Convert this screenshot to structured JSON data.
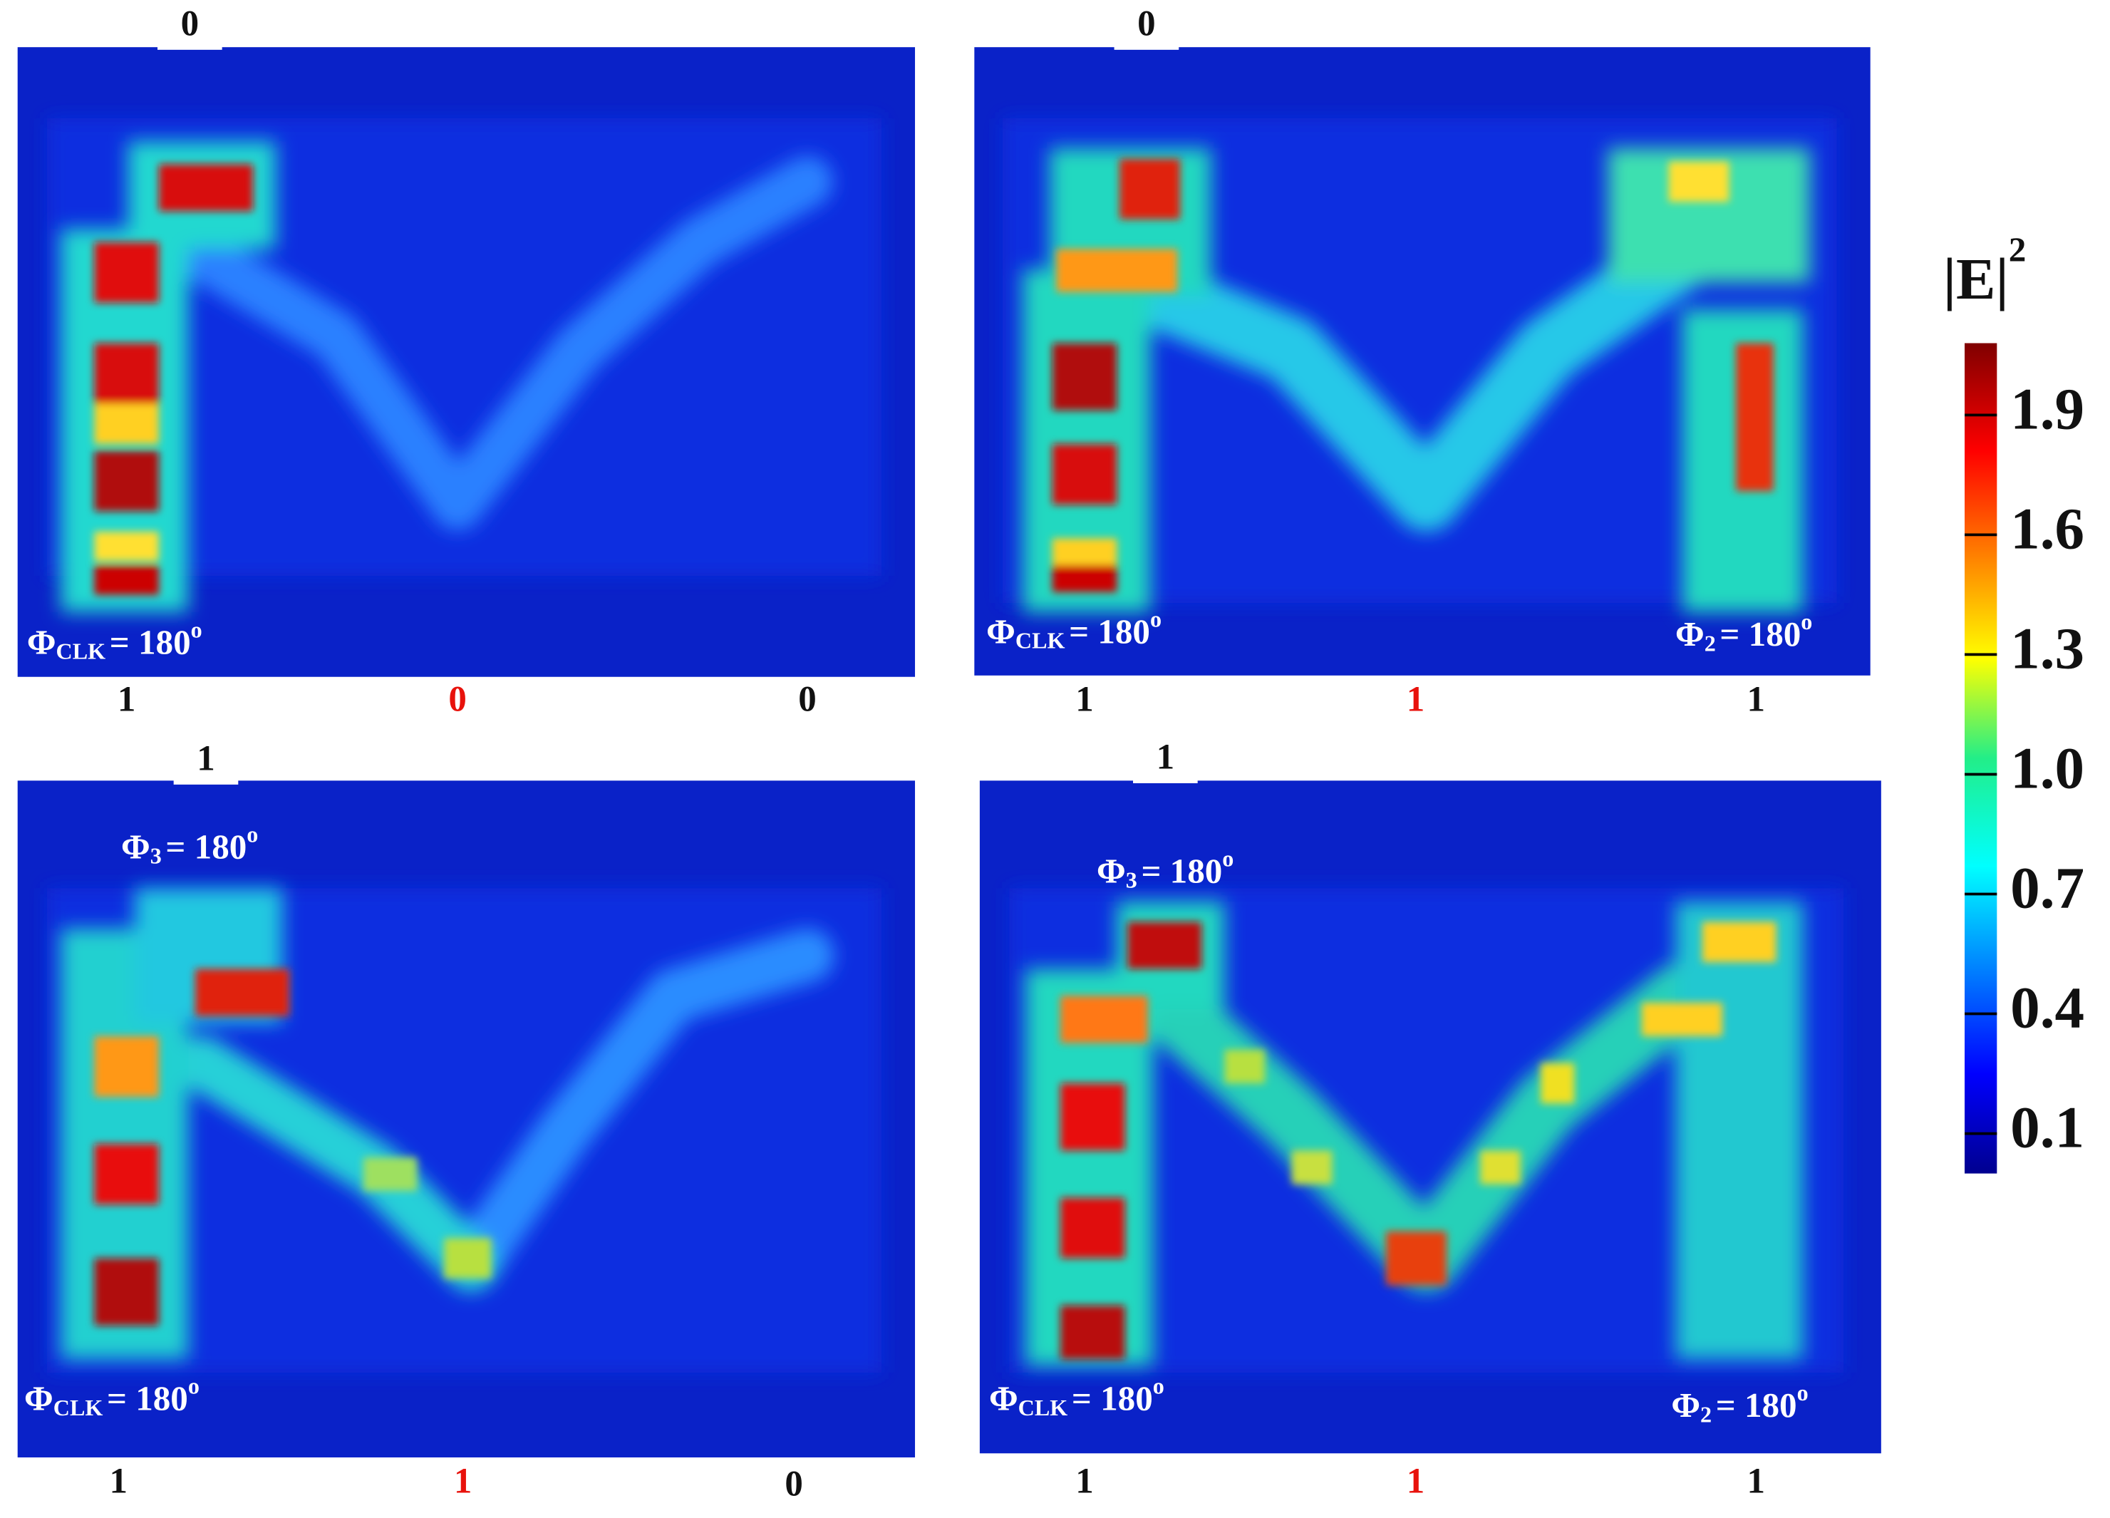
{
  "panels": [
    {
      "top_label": "0",
      "bottom_labels": [
        "1",
        "0",
        "0"
      ],
      "phase_labels": [
        {
          "symbol": "Φ",
          "subscript": "CLK",
          "text": "= 180",
          "superscript": "o"
        }
      ]
    },
    {
      "top_label": "0",
      "bottom_labels": [
        "1",
        "1",
        "1"
      ],
      "phase_labels": [
        {
          "symbol": "Φ",
          "subscript": "CLK",
          "text": "= 180",
          "superscript": "o"
        },
        {
          "symbol": "Φ",
          "subscript": "2",
          "text": "= 180",
          "superscript": "o"
        }
      ]
    },
    {
      "top_label": "1",
      "bottom_labels": [
        "1",
        "1",
        "0"
      ],
      "phase_labels": [
        {
          "symbol": "Φ",
          "subscript": "3",
          "text": "= 180",
          "superscript": "o"
        },
        {
          "symbol": "Φ",
          "subscript": "CLK",
          "text": "= 180",
          "superscript": "o"
        }
      ]
    },
    {
      "top_label": "1",
      "bottom_labels": [
        "1",
        "1",
        "1"
      ],
      "phase_labels": [
        {
          "symbol": "Φ",
          "subscript": "3",
          "text": "= 180",
          "superscript": "o"
        },
        {
          "symbol": "Φ",
          "subscript": "CLK",
          "text": "= 180",
          "superscript": "o"
        },
        {
          "symbol": "Φ",
          "subscript": "2",
          "text": "= 180",
          "superscript": "o"
        }
      ]
    }
  ],
  "colorbar": {
    "title": "|E|",
    "superscript": "2",
    "clim": [
      0,
      2.08
    ],
    "ticks": [
      0.1,
      0.4,
      0.7,
      {
        "value": 1,
        "label": "1.0"
      },
      1.3,
      1.6,
      1.9
    ]
  }
}
